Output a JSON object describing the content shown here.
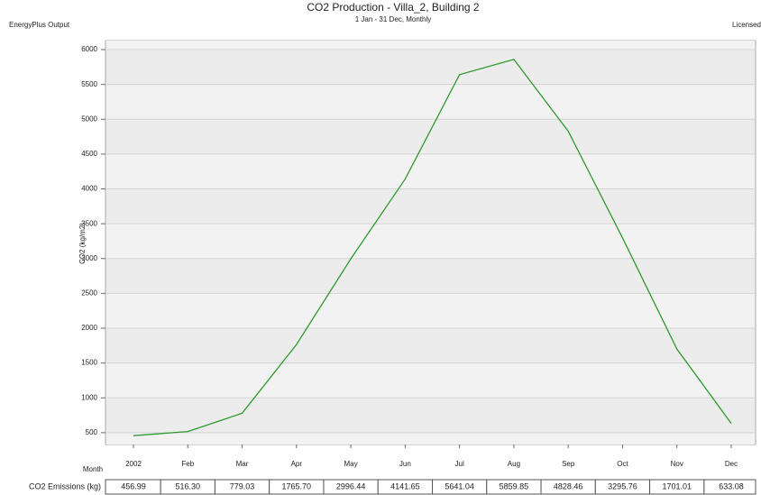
{
  "chart_data": {
    "type": "line",
    "header_left": "EnergyPlus Output",
    "header_right": "Licensed",
    "title": "CO2 Production - Villa_2, Building 2",
    "subtitle": "1 Jan - 31 Dec, Monthly",
    "y_label": "CO2 (kg/m2)",
    "x_label": "Month",
    "categories": [
      "2002",
      "Feb",
      "Mar",
      "Apr",
      "May",
      "Jun",
      "Jul",
      "Aug",
      "Sep",
      "Oct",
      "Nov",
      "Dec"
    ],
    "series": [
      {
        "name": "CO2 Emissions (kg)",
        "color": "#2e9a2e",
        "values": [
          456.99,
          516.3,
          779.03,
          1765.7,
          2996.44,
          4141.65,
          5641.04,
          5859.85,
          4828.46,
          3295.76,
          1701.01,
          633.08
        ],
        "value_labels": [
          "456.99",
          "516.30",
          "779.03",
          "1765.70",
          "2996.44",
          "4141.65",
          "5641.04",
          "5859.85",
          "4828.46",
          "3295.76",
          "1701.01",
          "633.08"
        ]
      }
    ],
    "ylim": [
      330,
      6130
    ],
    "yticks": [
      500,
      1000,
      1500,
      2000,
      2500,
      3000,
      3500,
      4000,
      4500,
      5000,
      5500,
      6000
    ],
    "grid": true
  }
}
